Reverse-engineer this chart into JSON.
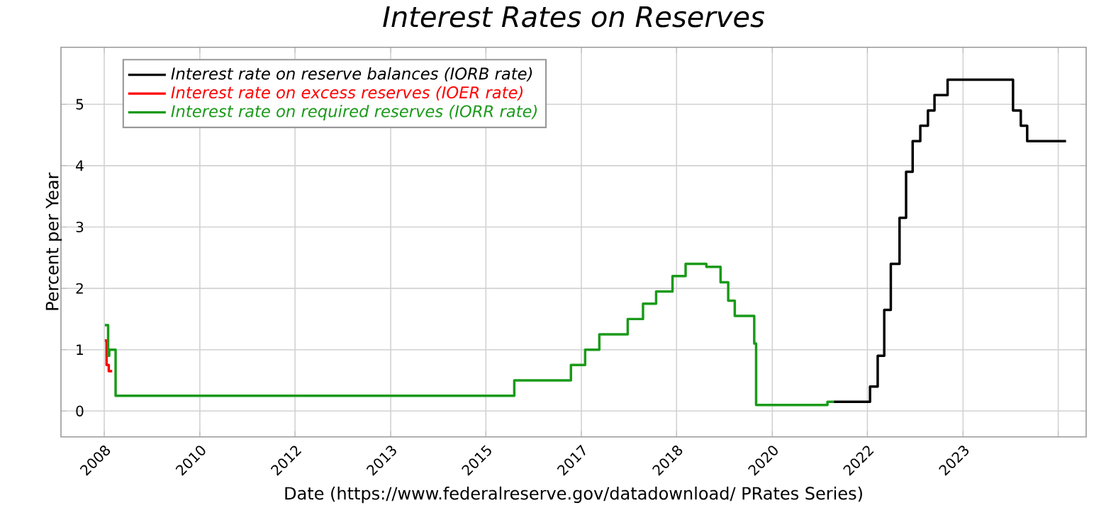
{
  "chart_data": {
    "type": "step",
    "title": "Interest Rates on Reserves",
    "xlabel": "Date (https://www.federalreserve.gov/datadownload/ PRates Series)",
    "ylabel": "Percent per Year",
    "xlim": [
      "2008-01-01",
      "2026-01-01"
    ],
    "ylim": [
      -0.42,
      5.93
    ],
    "xticks": [
      {
        "value": "2008-10-05",
        "label": "2008"
      },
      {
        "value": "2010-06-10",
        "label": "2010"
      },
      {
        "value": "2012-02-10",
        "label": "2012"
      },
      {
        "value": "2013-10-16",
        "label": "2013"
      },
      {
        "value": "2015-06-18",
        "label": "2015"
      },
      {
        "value": "2017-02-20",
        "label": "2017"
      },
      {
        "value": "2018-10-23",
        "label": "2018"
      },
      {
        "value": "2020-06-28",
        "label": "2020"
      },
      {
        "value": "2022-02-28",
        "label": "2022"
      },
      {
        "value": "2023-11-03",
        "label": "2023"
      },
      {
        "value": "2025-07-06",
        "label": null
      }
    ],
    "yticks": [
      0,
      1,
      2,
      3,
      4,
      5
    ],
    "grid": true,
    "legend": "top left",
    "series": [
      {
        "name": "Interest rate on reserve balances (IORB rate)",
        "color": "#000000",
        "x": [
          "2021-07-28",
          "2022-03-17",
          "2022-05-05",
          "2022-06-16",
          "2022-07-28",
          "2022-09-22",
          "2022-11-03",
          "2022-12-15",
          "2023-02-02",
          "2023-03-23",
          "2023-05-04",
          "2023-07-27",
          "2024-09-19",
          "2024-11-08",
          "2024-12-19",
          "2025-08-25"
        ],
        "values": [
          0.15,
          0.4,
          0.9,
          1.65,
          2.4,
          3.15,
          3.9,
          4.4,
          4.65,
          4.9,
          5.15,
          5.4,
          4.9,
          4.65,
          4.4,
          4.4
        ]
      },
      {
        "name": "Interest rate on excess reserves (IOER rate)",
        "color": "#ff0000",
        "x": [
          "2008-10-09",
          "2008-10-20",
          "2008-11-03",
          "2008-11-25"
        ],
        "values": [
          1.15,
          0.75,
          0.65,
          0.65
        ]
      },
      {
        "name": "Interest rate on required reserves (IORR rate)",
        "color": "#1a9a1a",
        "x": [
          "2008-10-09",
          "2008-10-30",
          "2008-11-06",
          "2008-12-17",
          "2015-12-17",
          "2016-12-15",
          "2017-03-16",
          "2017-06-15",
          "2017-12-14",
          "2018-03-22",
          "2018-06-14",
          "2018-09-27",
          "2018-12-20",
          "2019-05-02",
          "2019-08-01",
          "2019-09-19",
          "2019-10-31",
          "2020-03-04",
          "2020-03-16",
          "2021-06-17",
          "2021-07-28"
        ],
        "values": [
          1.4,
          0.9,
          1.0,
          0.25,
          0.5,
          0.75,
          1.0,
          1.25,
          1.5,
          1.75,
          1.95,
          2.2,
          2.4,
          2.35,
          2.1,
          1.8,
          1.55,
          1.1,
          0.1,
          0.15,
          0.15
        ]
      }
    ]
  }
}
